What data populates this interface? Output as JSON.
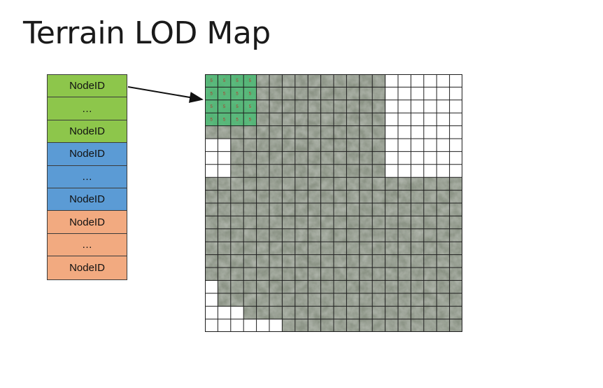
{
  "title": "Terrain LOD Map",
  "node_list": [
    {
      "label": "NodeID",
      "group": "green"
    },
    {
      "label": "…",
      "group": "green"
    },
    {
      "label": "NodeID",
      "group": "green"
    },
    {
      "label": "NodeID",
      "group": "blue"
    },
    {
      "label": "…",
      "group": "blue"
    },
    {
      "label": "NodeID",
      "group": "blue"
    },
    {
      "label": "NodeID",
      "group": "orange"
    },
    {
      "label": "…",
      "group": "orange"
    },
    {
      "label": "NodeID",
      "group": "orange"
    }
  ],
  "colors": {
    "green": "#8dc64b",
    "blue": "#5b9bd5",
    "orange": "#f2aa80",
    "lod_highlight": "#3fbf6f",
    "terrain": "#8c9486",
    "grid": "#1e1e1e"
  },
  "map": {
    "grid_size": 20,
    "highlight_label": "5",
    "highlight_cols": 4,
    "highlight_rows": 4,
    "terrain_rows": [
      [
        0,
        14
      ],
      [
        0,
        14
      ],
      [
        0,
        14
      ],
      [
        0,
        14
      ],
      [
        0,
        14
      ],
      [
        2,
        14
      ],
      [
        2,
        14
      ],
      [
        2,
        14
      ],
      [
        0,
        20
      ],
      [
        0,
        20
      ],
      [
        0,
        20
      ],
      [
        0,
        20
      ],
      [
        0,
        20
      ],
      [
        0,
        20
      ],
      [
        0,
        20
      ],
      [
        0,
        20
      ],
      [
        1,
        20
      ],
      [
        1,
        20
      ],
      [
        3,
        20
      ],
      [
        6,
        20
      ]
    ]
  }
}
